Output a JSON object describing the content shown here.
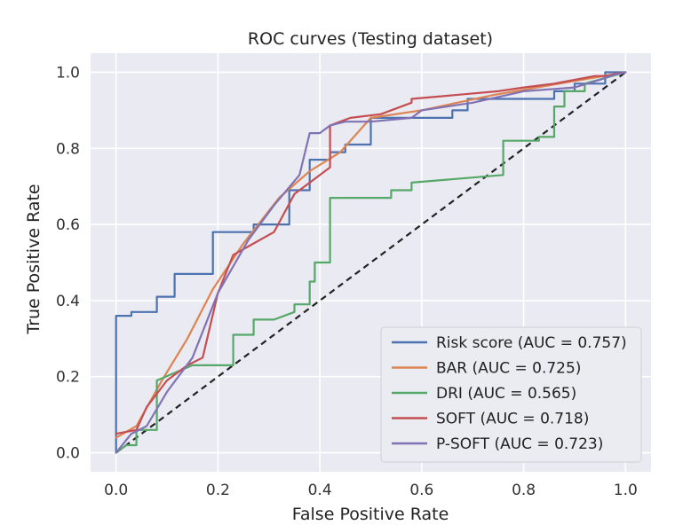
{
  "chart_data": {
    "type": "line",
    "title": "ROC curves (Testing dataset)",
    "xlabel": "False Positive Rate",
    "ylabel": "True Positive Rate",
    "xlim": [
      -0.05,
      1.05
    ],
    "ylim": [
      -0.05,
      1.05
    ],
    "x_ticks": [
      0.0,
      0.2,
      0.4,
      0.6,
      0.8,
      1.0
    ],
    "x_tick_labels": [
      "0.0",
      "0.2",
      "0.4",
      "0.6",
      "0.8",
      "1.0"
    ],
    "y_ticks": [
      0.0,
      0.2,
      0.4,
      0.6,
      0.8,
      1.0
    ],
    "y_tick_labels": [
      "0.0",
      "0.2",
      "0.4",
      "0.6",
      "0.8",
      "1.0"
    ],
    "grid": true,
    "legend_position": "bottom-right",
    "background": "#eaeaf2",
    "series": [
      {
        "name": "Risk score (AUC = 0.757)",
        "color": "#4c72b0",
        "x": [
          0.0,
          0.0,
          0.03,
          0.03,
          0.08,
          0.08,
          0.115,
          0.115,
          0.19,
          0.19,
          0.27,
          0.27,
          0.34,
          0.34,
          0.38,
          0.38,
          0.42,
          0.42,
          0.45,
          0.45,
          0.5,
          0.5,
          0.66,
          0.66,
          0.69,
          0.69,
          0.86,
          0.86,
          0.9,
          0.9,
          0.96,
          0.96,
          1.0
        ],
        "y": [
          0.0,
          0.36,
          0.36,
          0.37,
          0.37,
          0.41,
          0.41,
          0.47,
          0.47,
          0.58,
          0.58,
          0.6,
          0.6,
          0.69,
          0.69,
          0.77,
          0.77,
          0.79,
          0.79,
          0.81,
          0.81,
          0.88,
          0.88,
          0.9,
          0.9,
          0.93,
          0.93,
          0.95,
          0.95,
          0.97,
          0.97,
          1.0,
          1.0
        ]
      },
      {
        "name": "BAR (AUC = 0.725)",
        "color": "#dd8452",
        "x": [
          0.0,
          0.04,
          0.09,
          0.14,
          0.19,
          0.25,
          0.32,
          0.38,
          0.44,
          0.5,
          0.6,
          0.74,
          0.87,
          1.0
        ],
        "y": [
          0.04,
          0.07,
          0.19,
          0.3,
          0.43,
          0.55,
          0.67,
          0.74,
          0.79,
          0.88,
          0.9,
          0.94,
          0.97,
          1.0
        ]
      },
      {
        "name": " DRI (AUC = 0.565)",
        "color": "#55a868",
        "x": [
          0.0,
          0.02,
          0.04,
          0.04,
          0.08,
          0.08,
          0.15,
          0.23,
          0.23,
          0.27,
          0.27,
          0.31,
          0.35,
          0.35,
          0.38,
          0.38,
          0.39,
          0.39,
          0.42,
          0.42,
          0.5,
          0.54,
          0.54,
          0.58,
          0.58,
          0.76,
          0.76,
          0.83,
          0.83,
          0.86,
          0.86,
          0.88,
          0.88,
          0.92,
          0.92,
          1.0
        ],
        "y": [
          0.0,
          0.02,
          0.02,
          0.06,
          0.06,
          0.19,
          0.23,
          0.23,
          0.31,
          0.31,
          0.35,
          0.35,
          0.37,
          0.39,
          0.39,
          0.45,
          0.45,
          0.5,
          0.5,
          0.67,
          0.67,
          0.67,
          0.69,
          0.69,
          0.71,
          0.73,
          0.82,
          0.82,
          0.83,
          0.83,
          0.91,
          0.91,
          0.95,
          0.95,
          0.97,
          1.0
        ]
      },
      {
        "name": "SOFT (AUC = 0.718)",
        "color": "#c44e52",
        "x": [
          0.0,
          0.04,
          0.06,
          0.1,
          0.14,
          0.17,
          0.2,
          0.23,
          0.27,
          0.31,
          0.35,
          0.39,
          0.42,
          0.42,
          0.46,
          0.52,
          0.58,
          0.58,
          0.75,
          0.8,
          0.86,
          0.9,
          0.94,
          0.96,
          1.0
        ],
        "y": [
          0.05,
          0.06,
          0.12,
          0.19,
          0.23,
          0.25,
          0.42,
          0.52,
          0.55,
          0.58,
          0.68,
          0.72,
          0.75,
          0.86,
          0.88,
          0.89,
          0.92,
          0.93,
          0.95,
          0.96,
          0.97,
          0.98,
          0.99,
          0.99,
          1.0
        ]
      },
      {
        "name": "P-SOFT (AUC = 0.723)",
        "color": "#8172b3",
        "x": [
          0.0,
          0.03,
          0.06,
          0.1,
          0.15,
          0.2,
          0.26,
          0.31,
          0.36,
          0.38,
          0.4,
          0.42,
          0.45,
          0.5,
          0.58,
          0.6,
          0.7,
          0.8,
          0.9,
          0.95,
          0.97,
          1.0
        ],
        "y": [
          0.0,
          0.05,
          0.07,
          0.16,
          0.25,
          0.42,
          0.56,
          0.65,
          0.73,
          0.84,
          0.84,
          0.86,
          0.87,
          0.87,
          0.88,
          0.9,
          0.92,
          0.95,
          0.96,
          0.98,
          0.99,
          1.0
        ]
      }
    ],
    "reference_line": {
      "color": "#222222",
      "x": [
        0.0,
        1.0
      ],
      "y": [
        0.0,
        1.0
      ]
    }
  }
}
